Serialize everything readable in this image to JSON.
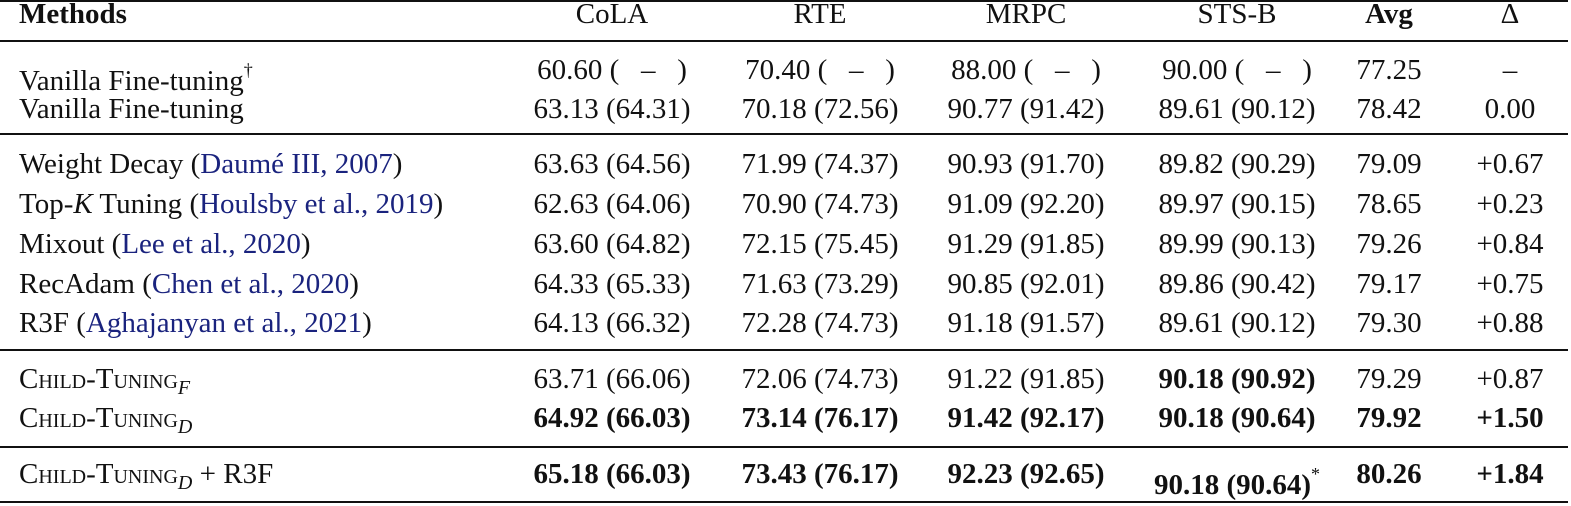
{
  "header": {
    "methods": "Methods",
    "cola": "CoLA",
    "rte": "RTE",
    "mrpc": "MRPC",
    "stsb": "STS-B",
    "avg": "Avg",
    "delta": "Δ"
  },
  "group1": [
    {
      "method": "Vanilla Fine-tuning",
      "mark": "†",
      "cola": "60.60 (   –   )",
      "rte": "70.40 (   –   )",
      "mrpc": "88.00 (   –   )",
      "stsb": "90.00 (   –   )",
      "avg": "77.25",
      "delta": "–"
    },
    {
      "method": "Vanilla Fine-tuning",
      "cola": "63.13 (64.31)",
      "rte": "70.18 (72.56)",
      "mrpc": "90.77 (91.42)",
      "stsb": "89.61 (90.12)",
      "avg": "78.42",
      "delta": "0.00"
    }
  ],
  "group2": [
    {
      "name": "Weight Decay",
      "cite": "Daumé III, 2007",
      "cola": "63.63 (64.56)",
      "rte": "71.99 (74.37)",
      "mrpc": "90.93 (91.70)",
      "stsb": "89.82 (90.29)",
      "avg": "79.09",
      "delta": "+0.67"
    },
    {
      "name_pre": "Top-",
      "name_var": "K",
      "name_post": " Tuning",
      "cite": "Houlsby et al., 2019",
      "cola": "62.63 (64.06)",
      "rte": "70.90 (74.73)",
      "mrpc": "91.09 (92.20)",
      "stsb": "89.97 (90.15)",
      "avg": "78.65",
      "delta": "+0.23"
    },
    {
      "name": "Mixout",
      "cite": "Lee et al., 2020",
      "cola": "63.60 (64.82)",
      "rte": "72.15 (75.45)",
      "mrpc": "91.29 (91.85)",
      "stsb": "89.99 (90.13)",
      "avg": "79.26",
      "delta": "+0.84"
    },
    {
      "name": "RecAdam",
      "cite": "Chen et al., 2020",
      "cola": "64.33 (65.33)",
      "rte": "71.63 (73.29)",
      "mrpc": "90.85 (92.01)",
      "stsb": "89.86 (90.42)",
      "avg": "79.17",
      "delta": "+0.75"
    },
    {
      "name": "R3F",
      "cite": "Aghajanyan et al., 2021",
      "cola": "64.13 (66.32)",
      "rte": "72.28 (74.73)",
      "mrpc": "91.18 (91.57)",
      "stsb": "89.61 (90.12)",
      "avg": "79.30",
      "delta": "+0.88"
    }
  ],
  "group3": [
    {
      "name": "Child-Tuning",
      "sub": "F",
      "cola": "63.71 (66.06)",
      "rte": "72.06 (74.73)",
      "mrpc": "91.22 (91.85)",
      "stsb": "90.18 (90.92)",
      "avg": "79.29",
      "delta": "+0.87"
    },
    {
      "name": "Child-Tuning",
      "sub": "D",
      "cola": "64.92 (66.03)",
      "rte": "73.14 (76.17)",
      "mrpc": "91.42 (92.17)",
      "stsb": "90.18 (90.64)",
      "avg": "79.92",
      "delta": "+1.50"
    }
  ],
  "group4": [
    {
      "name": "Child-Tuning",
      "sub": "D",
      "suffix": " + R3F",
      "cola": "65.18 (66.03)",
      "rte": "73.43 (76.17)",
      "mrpc": "92.23 (92.65)",
      "stsb": "90.18 (90.64)",
      "stsb_mark": "*",
      "avg": "80.26",
      "delta": "+1.84"
    }
  ]
}
